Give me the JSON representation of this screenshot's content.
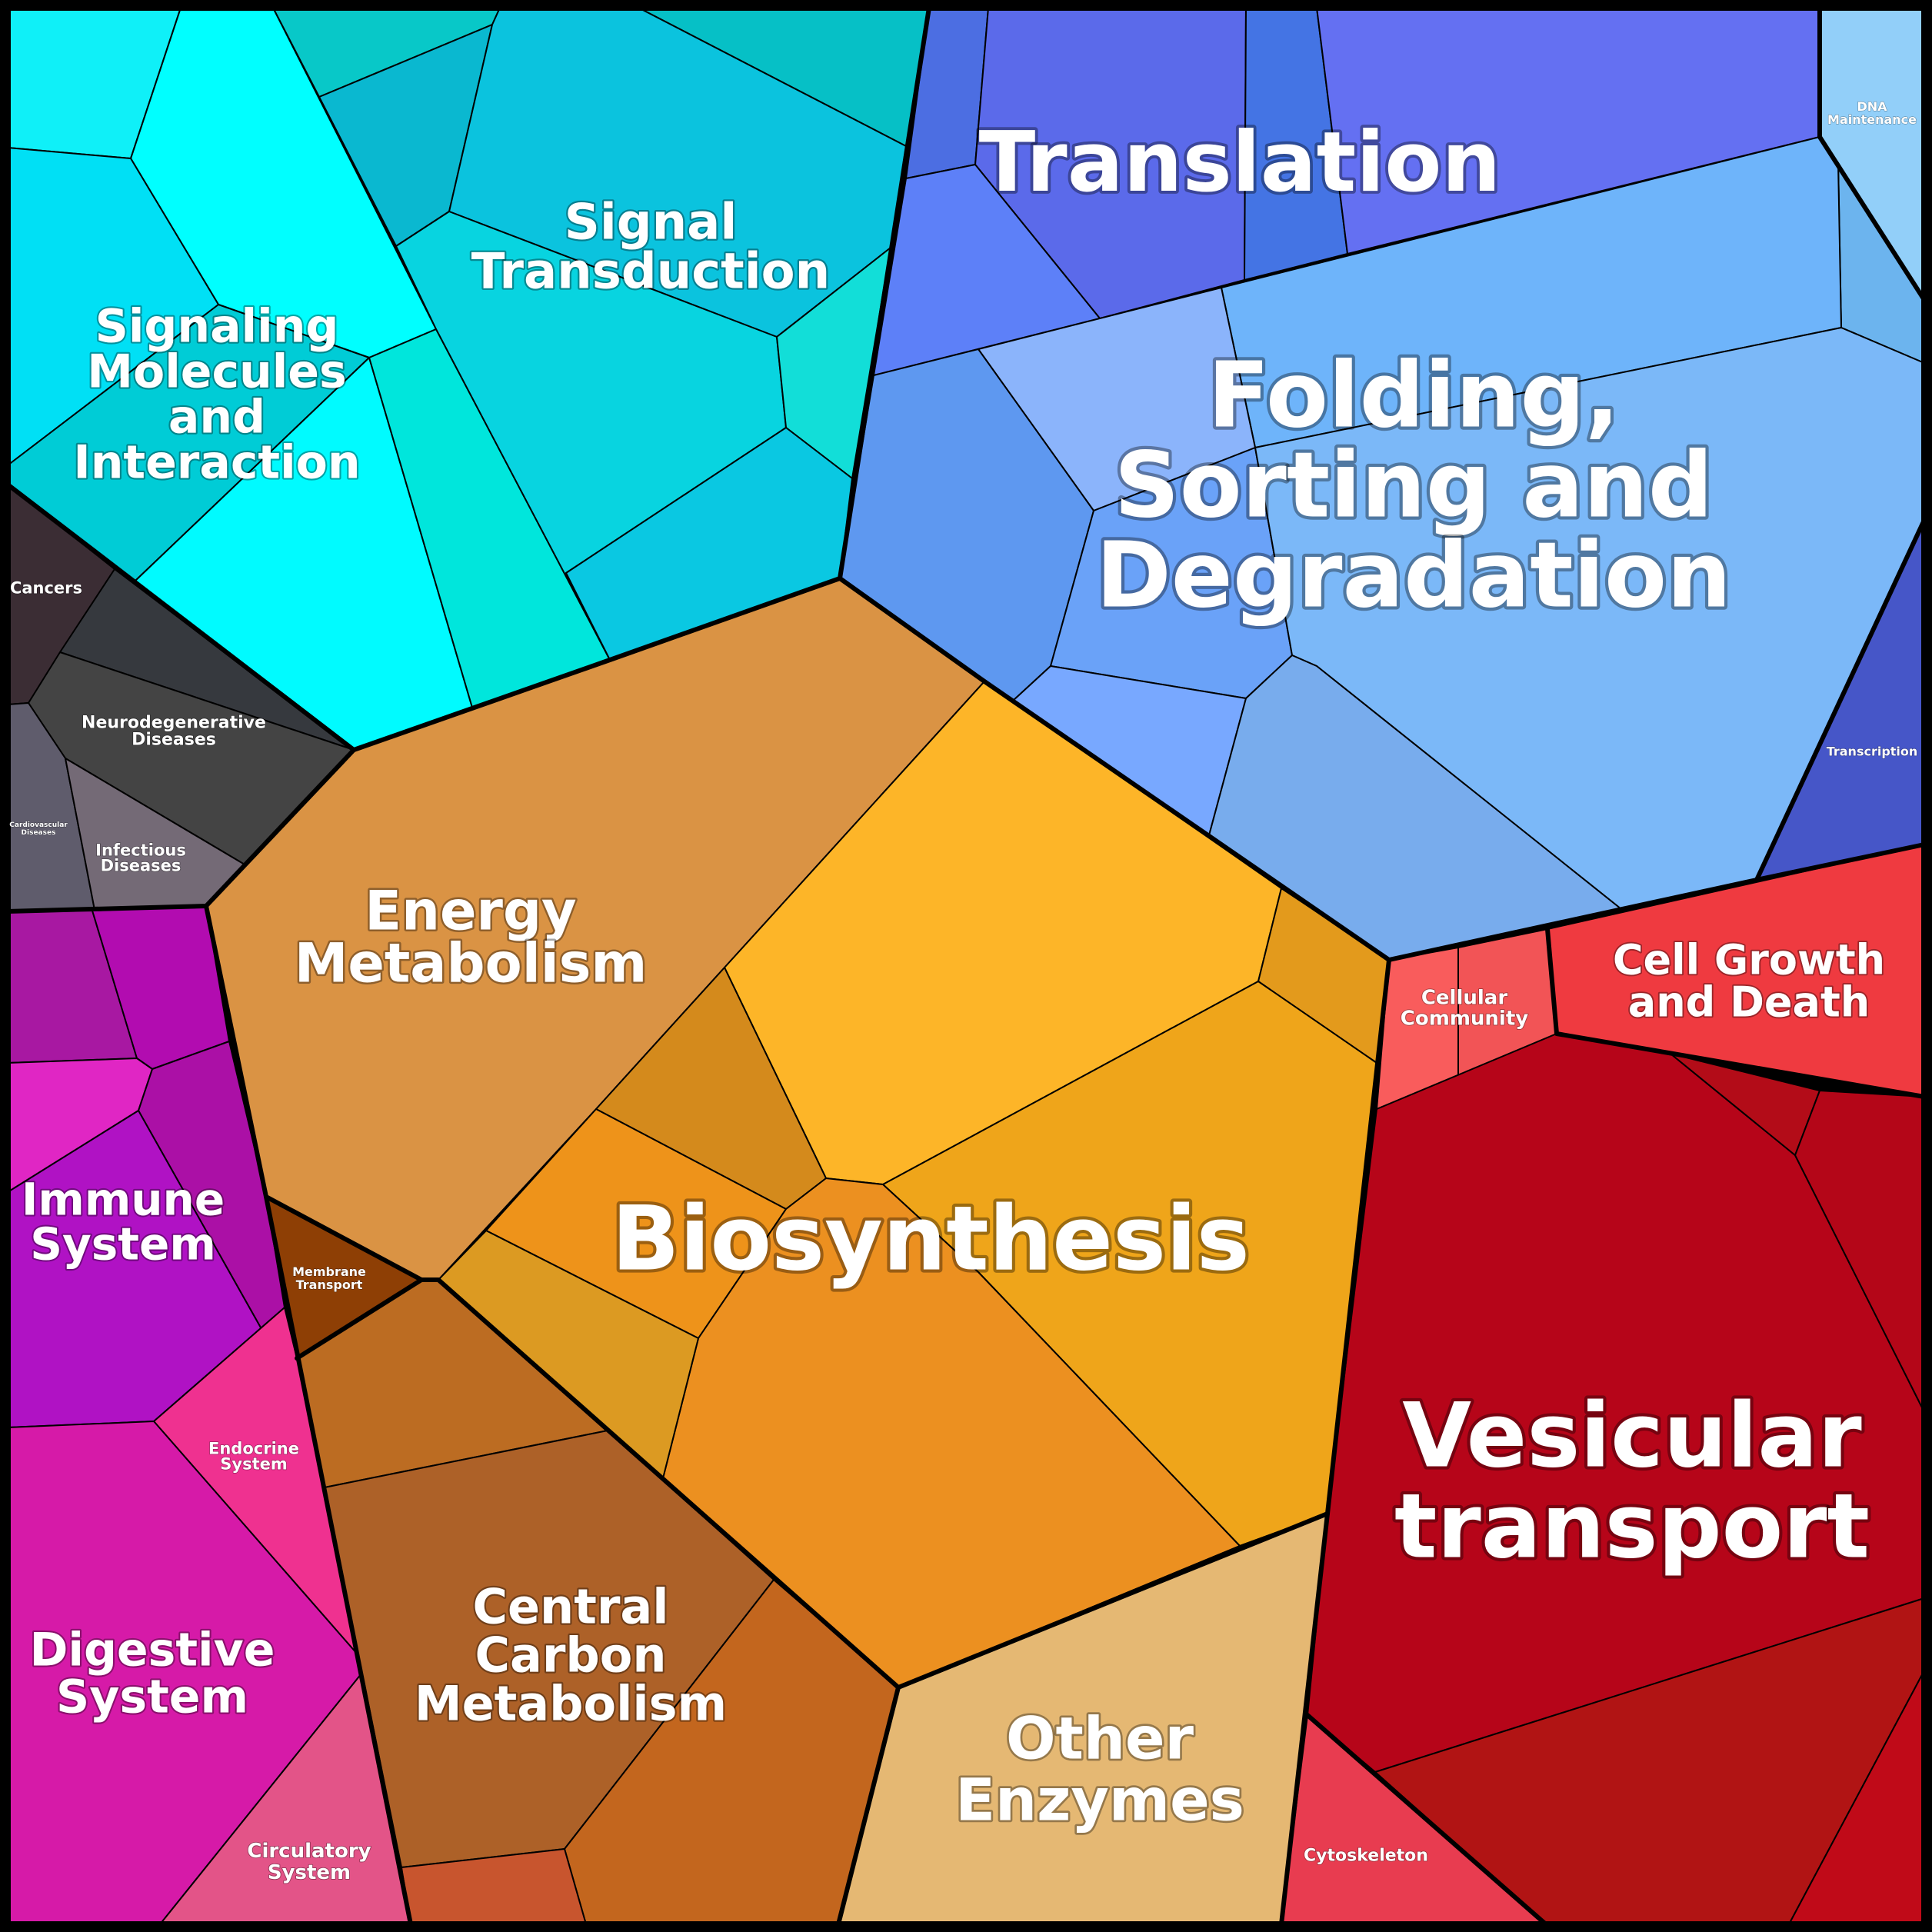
{
  "labels": {
    "translation": [
      "Translation"
    ],
    "folding": [
      "Folding,",
      "Sorting and",
      "Degradation"
    ],
    "dna_maintenance": [
      "DNA",
      "Maintenance"
    ],
    "transcription": [
      "Transcription"
    ],
    "signal_transduction": [
      "Signal",
      "Transduction"
    ],
    "signaling_molecules": [
      "Signaling",
      "Molecules",
      "and",
      "Interaction"
    ],
    "cancers": [
      "Cancers"
    ],
    "neurodegenerative": [
      "Neurodegenerative",
      "Diseases"
    ],
    "cardiovascular": [
      "Cardiovascular",
      "Diseases"
    ],
    "infectious": [
      "Infectious",
      "Diseases"
    ],
    "energy_metabolism": [
      "Energy",
      "Metabolism"
    ],
    "biosynthesis": [
      "Biosynthesis"
    ],
    "membrane_transport": [
      "Membrane",
      "Transport"
    ],
    "immune": [
      "Immune",
      "System"
    ],
    "endocrine": [
      "Endocrine",
      "System"
    ],
    "digestive": [
      "Digestive",
      "System"
    ],
    "circulatory": [
      "Circulatory",
      "System"
    ],
    "central_carbon": [
      "Central",
      "Carbon",
      "Metabolism"
    ],
    "other_enzymes": [
      "Other",
      "Enzymes"
    ],
    "cellular_community": [
      "Cellular",
      "Community"
    ],
    "cell_growth": [
      "Cell Growth",
      "and Death"
    ],
    "vesicular": [
      "Vesicular",
      "transport"
    ],
    "cytoskeleton": [
      "Cytoskeleton"
    ]
  },
  "colors": {
    "signaling_cyan": "#00ffff",
    "signal_transduction": "#0ac6de",
    "translation": "#5b6ae8",
    "folding": "#7bb8f8",
    "dna_maintenance": "#90cdfa",
    "transcription": "#4656c8",
    "diseases_dark": "#3b3b3e",
    "energy": "#da9344",
    "biosynthesis_yellow": "#fdb528",
    "biosynthesis_orange": "#ec9020",
    "immune": "#b012c4",
    "digestive": "#d61aa8",
    "endocrine": "#ef3190",
    "circulatory": "#e35488",
    "central_carbon": "#ad6128",
    "other_enzymes": "#e5b873",
    "cellular_community": "#f95c5c",
    "cell_growth": "#e53446",
    "vesicular": "#b60519",
    "cytoskeleton": "#e83c50",
    "membrane_transport": "#8e3f05"
  }
}
